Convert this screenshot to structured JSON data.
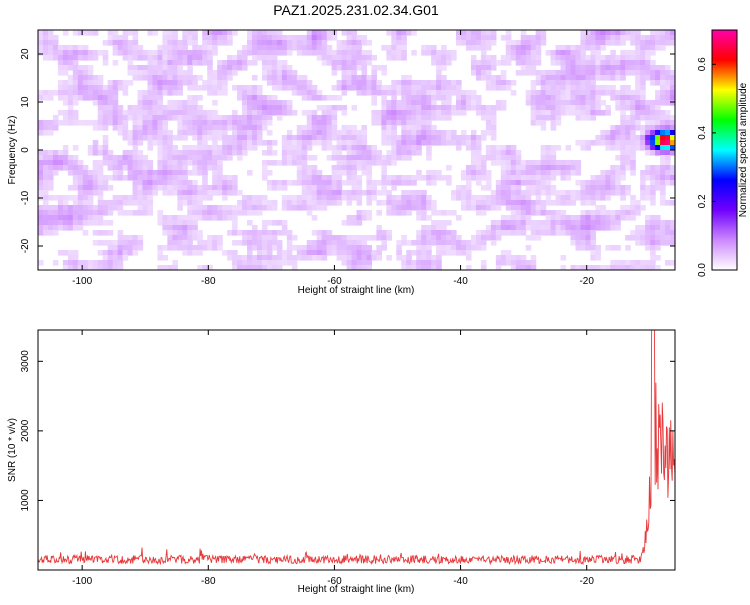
{
  "title": "PAZ1.2025.231.02.34.G01",
  "colors": {
    "snr_line": "#e8383a",
    "axis": "#000000",
    "background": "#ffffff"
  },
  "chart_data": [
    {
      "type": "heatmap",
      "name": "spectrogram",
      "xlabel": "Height of straight line (km)",
      "ylabel": "Frequency (Hz)",
      "xlim": [
        -107,
        -6
      ],
      "ylim": [
        -25,
        25
      ],
      "xticks": [
        -100,
        -80,
        -60,
        -40,
        -20
      ],
      "yticks": [
        -20,
        -10,
        0,
        10,
        20
      ],
      "colorbar": {
        "label": "Normalized spectral amplitude",
        "range": [
          0,
          0.7
        ],
        "ticks": [
          0.0,
          0.2,
          0.4,
          0.6
        ],
        "tick_labels": [
          "0.0",
          "0.2",
          "0.4",
          "0.6"
        ],
        "colormap": [
          "#ffffff",
          "#cc88ff",
          "#7000ff",
          "#0000ff",
          "#00ffff",
          "#00ff00",
          "#ffff00",
          "#ff0000",
          "#ff00aa"
        ]
      },
      "background_level": 0.05,
      "hotspot": {
        "x": -7.5,
        "y": 2,
        "value": 0.7
      }
    },
    {
      "type": "line",
      "name": "snr",
      "xlabel": "Height of straight line (km)",
      "ylabel": "SNR (10 * v/v)",
      "xlim": [
        -107,
        -6
      ],
      "ylim": [
        0,
        3450
      ],
      "xticks": [
        -100,
        -80,
        -60,
        -40,
        -20
      ],
      "yticks": [
        1000,
        2000,
        3000
      ],
      "baseline": 150,
      "rise_start": -12,
      "peak": {
        "x": -9.5,
        "y": 3450
      }
    }
  ]
}
